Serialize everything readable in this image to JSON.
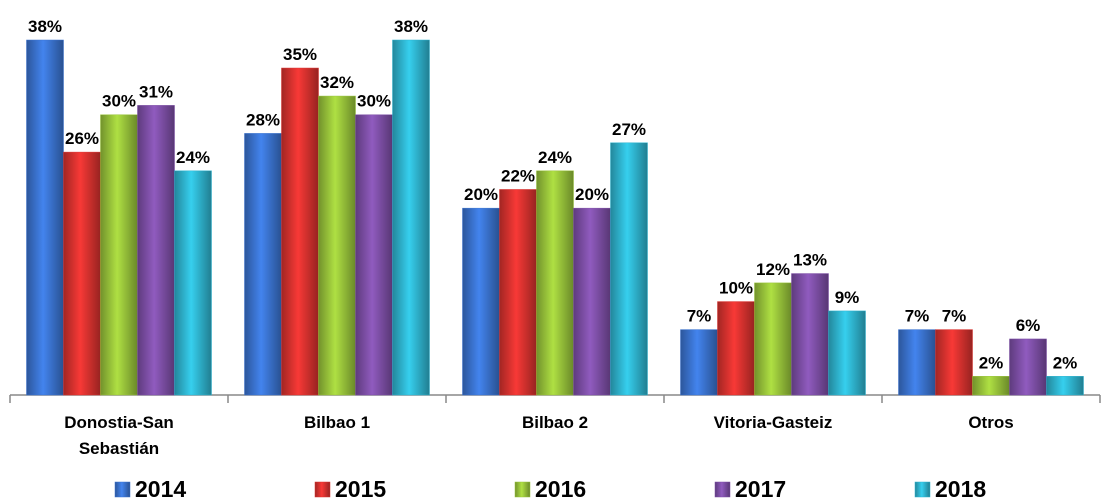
{
  "chart_data": {
    "type": "bar",
    "categories": [
      "Donostia-San Sebastián",
      "Bilbao 1",
      "Bilbao 2",
      "Vitoria-Gasteiz",
      "Otros"
    ],
    "series": [
      {
        "name": "2014",
        "color": "#3a73cf",
        "values": [
          38,
          28,
          20,
          7,
          7
        ],
        "value_labels": [
          "38%",
          "28%",
          "20%",
          "7%",
          "7%"
        ]
      },
      {
        "name": "2015",
        "color": "#d8322f",
        "values": [
          26,
          35,
          22,
          10,
          7
        ],
        "value_labels": [
          "26%",
          "35%",
          "22%",
          "10%",
          "7%"
        ]
      },
      {
        "name": "2016",
        "color": "#98c33a",
        "values": [
          30,
          32,
          24,
          12,
          2
        ],
        "value_labels": [
          "30%",
          "32%",
          "24%",
          "12%",
          "2%"
        ]
      },
      {
        "name": "2017",
        "color": "#7d4fa6",
        "values": [
          31,
          30,
          20,
          13,
          6
        ],
        "value_labels": [
          "31%",
          "30%",
          "20%",
          "13%",
          "6%"
        ]
      },
      {
        "name": "2018",
        "color": "#2fb4cf",
        "values": [
          24,
          38,
          27,
          9,
          2
        ],
        "value_labels": [
          "24%",
          "38%",
          "27%",
          "9%",
          "2%"
        ]
      }
    ]
  }
}
